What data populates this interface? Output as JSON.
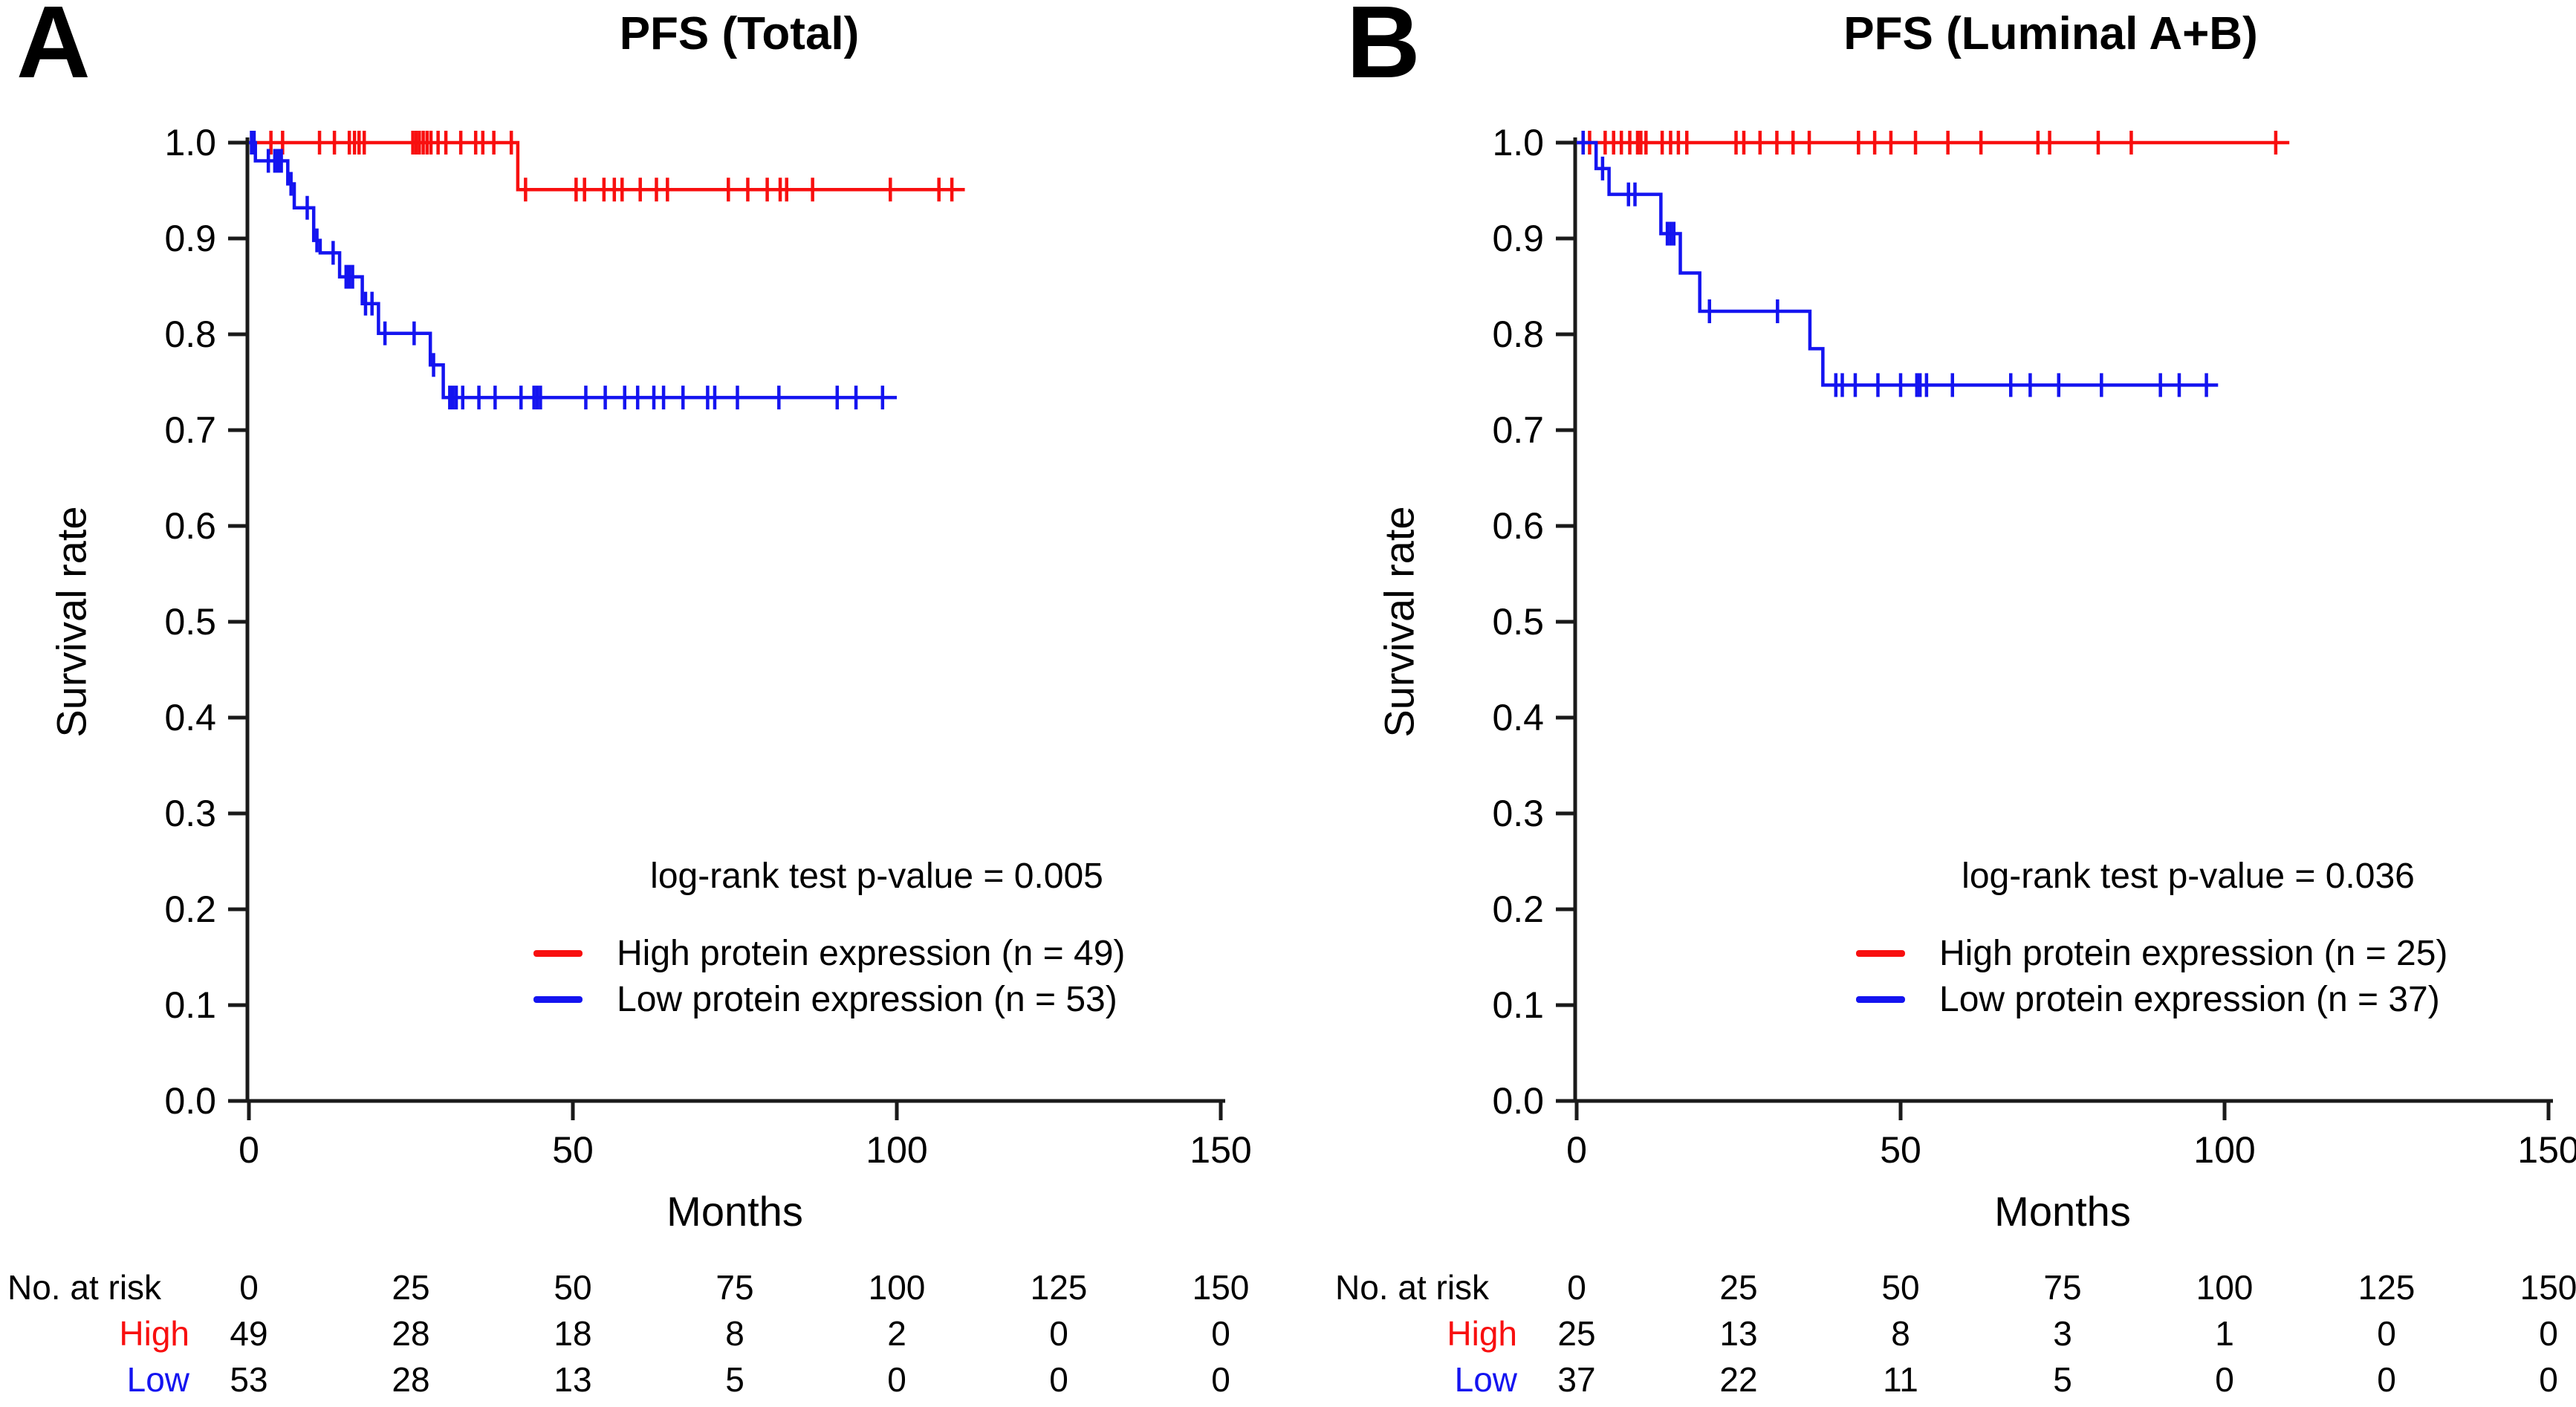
{
  "colors": {
    "high": "#f80f0f",
    "low": "#1414f0",
    "axis": "#1a1a1a",
    "text": "#000000",
    "background": "#ffffff"
  },
  "chart_data": [
    {
      "type": "line",
      "subtype": "kaplan-meier-step",
      "panel_label": "A",
      "title": "PFS (Total)",
      "xlabel": "Months",
      "ylabel": "Survival rate",
      "xlim": [
        0,
        150
      ],
      "ylim": [
        0.0,
        1.0
      ],
      "grid": false,
      "x_ticks": [
        [
          "0",
          0
        ],
        [
          "50",
          50
        ],
        [
          "100",
          100
        ],
        [
          "150",
          150
        ]
      ],
      "y_ticks": [
        [
          "1.0",
          1.0
        ],
        [
          "0.9",
          0.9
        ],
        [
          "0.8",
          0.8
        ],
        [
          "0.7",
          0.7
        ],
        [
          "0.6",
          0.6
        ],
        [
          "0.5",
          0.5
        ],
        [
          "0.4",
          0.4
        ],
        [
          "0.3",
          0.3
        ],
        [
          "0.2",
          0.2
        ],
        [
          "0.1",
          0.1
        ],
        [
          "0.0",
          0.0
        ]
      ],
      "annotation": "log-rank test p-value = 0.005",
      "legend_position": "lower-right-inside",
      "series": [
        {
          "name": "High protein expression (n = 49)",
          "color": "#f80f0f",
          "start": 1.0,
          "steps": [
            [
              41.5,
              0.951
            ]
          ],
          "end": 110.5,
          "censors": [
            3.4,
            5.2,
            10.9,
            13.2,
            15.5,
            16.3,
            17,
            17.8,
            25.3,
            25.8,
            26.3,
            26.9,
            27.5,
            28.1,
            29.2,
            30.4,
            32.7,
            35,
            36.1,
            37.8,
            40.5,
            42.7,
            50.5,
            51.8,
            54.8,
            56.4,
            57.6,
            60.4,
            62.9,
            64.6,
            74,
            77,
            80,
            82,
            83,
            87,
            99,
            106.5,
            108.5
          ]
        },
        {
          "name": "Low protein expression (n = 53)",
          "color": "#1414f0",
          "start": 1.0,
          "steps": [
            [
              1,
              0.981
            ],
            [
              6,
              0.957
            ],
            [
              7,
              0.932
            ],
            [
              10,
              0.898
            ],
            [
              11,
              0.885
            ],
            [
              14,
              0.86
            ],
            [
              17.5,
              0.832
            ],
            [
              20,
              0.801
            ],
            [
              28,
              0.768
            ],
            [
              30,
              0.734
            ]
          ],
          "end": 100,
          "censors": [
            0.4,
            0.8,
            3,
            4,
            4.5,
            5,
            6.5,
            9,
            10.5,
            13,
            15,
            15.5,
            16,
            18,
            19,
            21,
            25.5,
            28.5,
            31,
            31.5,
            32,
            33,
            35.5,
            38,
            42,
            44,
            44.5,
            45,
            52,
            55,
            58,
            60,
            62.5,
            64,
            67,
            70.8,
            71.9,
            75.4,
            81.8,
            90.8,
            93.7,
            97.8
          ]
        }
      ],
      "risk_table": {
        "header": "No. at risk",
        "columns": [
          0,
          25,
          50,
          75,
          100,
          125,
          150
        ],
        "rows": [
          {
            "label": "High",
            "color": "#f80f0f",
            "values": [
              49,
              28,
              18,
              8,
              2,
              0,
              0
            ]
          },
          {
            "label": "Low",
            "color": "#1414f0",
            "values": [
              53,
              28,
              13,
              5,
              0,
              0,
              0
            ]
          }
        ]
      }
    },
    {
      "type": "line",
      "subtype": "kaplan-meier-step",
      "panel_label": "B",
      "title": "PFS (Luminal A+B)",
      "xlabel": "Months",
      "ylabel": "Survival rate",
      "xlim": [
        0,
        150
      ],
      "ylim": [
        0.0,
        1.0
      ],
      "grid": false,
      "x_ticks": [
        [
          "0",
          0
        ],
        [
          "50",
          50
        ],
        [
          "100",
          100
        ],
        [
          "150",
          150
        ]
      ],
      "y_ticks": [
        [
          "1.0",
          1.0
        ],
        [
          "0.9",
          0.9
        ],
        [
          "0.8",
          0.8
        ],
        [
          "0.7",
          0.7
        ],
        [
          "0.6",
          0.6
        ],
        [
          "0.5",
          0.5
        ],
        [
          "0.4",
          0.4
        ],
        [
          "0.3",
          0.3
        ],
        [
          "0.2",
          0.2
        ],
        [
          "0.1",
          0.1
        ],
        [
          "0.0",
          0.0
        ]
      ],
      "annotation": "log-rank test p-value = 0.036",
      "legend_position": "lower-right-inside",
      "series": [
        {
          "name": "High protein expression (n = 25)",
          "color": "#f80f0f",
          "start": 1.0,
          "steps": [],
          "end": 110,
          "censors": [
            1,
            2,
            4.4,
            5.7,
            6.9,
            8.2,
            9.4,
            9.9,
            10.7,
            13.2,
            14.5,
            15.7,
            17,
            24.6,
            25.8,
            28.3,
            30.9,
            33.4,
            35.9,
            43.5,
            46,
            48.5,
            52.3,
            57.3,
            62.4,
            71.2,
            73,
            80.5,
            85.6,
            107.9
          ]
        },
        {
          "name": "Low protein expression (n = 37)",
          "color": "#1414f0",
          "start": 1.0,
          "steps": [
            [
              3,
              0.973
            ],
            [
              5,
              0.946
            ],
            [
              13,
              0.905
            ],
            [
              16,
              0.864
            ],
            [
              19,
              0.824
            ],
            [
              36,
              0.785
            ],
            [
              38,
              0.747
            ]
          ],
          "end": 99,
          "censors": [
            1,
            4,
            8,
            9,
            14,
            14.5,
            15,
            20.5,
            31,
            40,
            41,
            43,
            46.5,
            50,
            52.5,
            53,
            54,
            58,
            67,
            70,
            74.4,
            81,
            90.1,
            93,
            97.2
          ]
        }
      ],
      "risk_table": {
        "header": "No. at risk",
        "columns": [
          0,
          25,
          50,
          75,
          100,
          125,
          150
        ],
        "rows": [
          {
            "label": "High",
            "color": "#f80f0f",
            "values": [
              25,
              13,
              8,
              3,
              1,
              0,
              0
            ]
          },
          {
            "label": "Low",
            "color": "#1414f0",
            "values": [
              37,
              22,
              11,
              5,
              0,
              0,
              0
            ]
          }
        ]
      }
    }
  ]
}
